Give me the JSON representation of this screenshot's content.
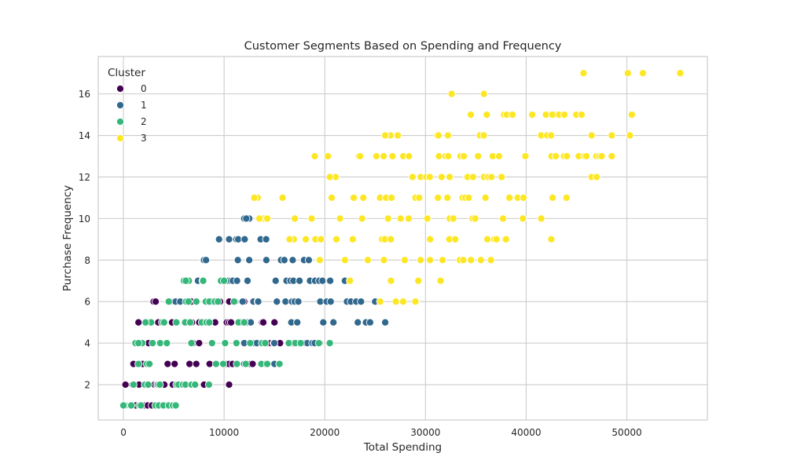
{
  "chart_data": {
    "type": "scatter",
    "title": "Customer Segments Based on Spending and Frequency",
    "xlabel": "Total Spending",
    "ylabel": "Purchase Frequency",
    "xlim": [
      -2500,
      58000
    ],
    "ylim": [
      0.3,
      17.8
    ],
    "xticks": [
      0,
      10000,
      20000,
      30000,
      40000,
      50000
    ],
    "yticks": [
      2,
      4,
      6,
      8,
      10,
      12,
      14,
      16
    ],
    "grid": true,
    "legend": {
      "title": "Cluster",
      "placement": "top-left"
    },
    "colors": {
      "0": "#440154",
      "1": "#31688e",
      "2": "#35b779",
      "3": "#fde725"
    },
    "series": [
      {
        "name": "0",
        "ranges": [
          [
            1,
            300,
            5000
          ],
          [
            2,
            200,
            10500
          ],
          [
            3,
            1000,
            15000
          ],
          [
            4,
            2500,
            19500
          ],
          [
            5,
            1500,
            15000
          ],
          [
            6,
            3000,
            12000
          ]
        ],
        "step": 290,
        "points": [
          [
            3500,
            1
          ],
          [
            4500,
            1
          ],
          [
            10500,
            2
          ],
          [
            3200,
            6
          ],
          [
            19000,
            4
          ],
          [
            15000,
            3
          ]
        ]
      },
      {
        "name": "1",
        "ranges": [
          [
            3,
            12000,
            15000
          ],
          [
            4,
            12000,
            19000
          ],
          [
            5,
            12000,
            24500
          ],
          [
            6,
            4500,
            25000
          ],
          [
            7,
            6500,
            22000
          ],
          [
            8,
            8000,
            19500
          ],
          [
            9,
            10500,
            16500
          ],
          [
            10,
            12000,
            12500
          ]
        ],
        "step": 300,
        "points": [
          [
            9500,
            9
          ],
          [
            26000,
            5
          ],
          [
            12200,
            10
          ],
          [
            8200,
            8
          ],
          [
            25000,
            6
          ]
        ]
      },
      {
        "name": "2",
        "ranges": [
          [
            1,
            0,
            5200
          ],
          [
            2,
            1000,
            8500
          ],
          [
            3,
            1500,
            15500
          ],
          [
            4,
            1200,
            20500
          ],
          [
            5,
            2200,
            12000
          ],
          [
            6,
            4500,
            11000
          ],
          [
            7,
            6000,
            10000
          ]
        ],
        "step": 300,
        "points": [
          [
            5200,
            1
          ],
          [
            15500,
            3
          ],
          [
            20500,
            4
          ],
          [
            6200,
            7
          ],
          [
            1500,
            4
          ]
        ]
      },
      {
        "name": "3",
        "ranges": [
          [
            6,
            25500,
            29000
          ],
          [
            7,
            22500,
            31500
          ],
          [
            8,
            19500,
            35500
          ],
          [
            9,
            16500,
            38000
          ],
          [
            10,
            13500,
            41500
          ],
          [
            11,
            13000,
            44000
          ],
          [
            12,
            20500,
            46500
          ],
          [
            13,
            23500,
            47500
          ],
          [
            14,
            26000,
            46500
          ],
          [
            15,
            34500,
            45500
          ]
        ],
        "step": 420,
        "points": [
          [
            13000,
            11
          ],
          [
            19000,
            13
          ],
          [
            20300,
            13
          ],
          [
            48500,
            13
          ],
          [
            48500,
            14
          ],
          [
            50300,
            14
          ],
          [
            26000,
            14
          ],
          [
            50500,
            15
          ],
          [
            32600,
            16
          ],
          [
            35800,
            16
          ],
          [
            45700,
            17
          ],
          [
            50100,
            17
          ],
          [
            51600,
            17
          ],
          [
            55300,
            17
          ],
          [
            42500,
            9
          ],
          [
            40600,
            15
          ],
          [
            42600,
            15
          ],
          [
            43800,
            15
          ],
          [
            29000,
            6
          ],
          [
            36500,
            8
          ],
          [
            41500,
            10
          ],
          [
            44000,
            11
          ],
          [
            47000,
            12
          ]
        ]
      }
    ]
  }
}
